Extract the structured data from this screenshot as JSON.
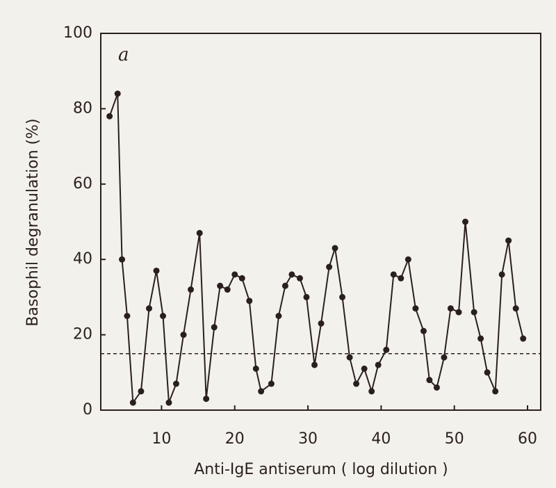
{
  "chart_data": {
    "type": "line",
    "panel_label": "a",
    "x_label": "Anti-IgE antiserum  ( log dilution )",
    "y_label": "Basophil degranulation (%)",
    "xlim": [
      1.7,
      61.8
    ],
    "ylim": [
      0,
      100
    ],
    "xticks": [
      10,
      20,
      30,
      40,
      50,
      60
    ],
    "yticks": [
      0,
      20,
      40,
      60,
      80,
      100
    ],
    "reference_line": 15,
    "color": "#2a1f1f",
    "x": [
      2.9,
      4,
      4.6,
      5.3,
      6.1,
      7.2,
      8.3,
      9.3,
      10.2,
      11,
      12,
      13,
      14,
      15.2,
      16.1,
      17.2,
      18,
      19,
      20,
      21,
      22,
      22.9,
      23.6,
      25,
      26,
      26.9,
      27.8,
      28.9,
      29.8,
      30.9,
      31.8,
      32.9,
      33.7,
      34.7,
      35.7,
      36.6,
      37.7,
      38.7,
      39.6,
      40.7,
      41.7,
      42.7,
      43.7,
      44.7,
      45.8,
      46.6,
      47.6,
      48.6,
      49.5,
      50.6,
      51.5,
      52.7,
      53.6,
      54.5,
      55.6,
      56.5,
      57.4,
      58.4,
      59.4
    ],
    "values": [
      78,
      84,
      40,
      25,
      2,
      5,
      27,
      37,
      25,
      2,
      7,
      20,
      32,
      47,
      3,
      22,
      33,
      32,
      36,
      35,
      29,
      11,
      5,
      7,
      25,
      33,
      36,
      35,
      30,
      12,
      23,
      38,
      43,
      30,
      14,
      7,
      11,
      5,
      12,
      16,
      36,
      35,
      40,
      27,
      21,
      8,
      6,
      14,
      27,
      26,
      50,
      26,
      19,
      10,
      5,
      36,
      45,
      27,
      19
    ]
  }
}
